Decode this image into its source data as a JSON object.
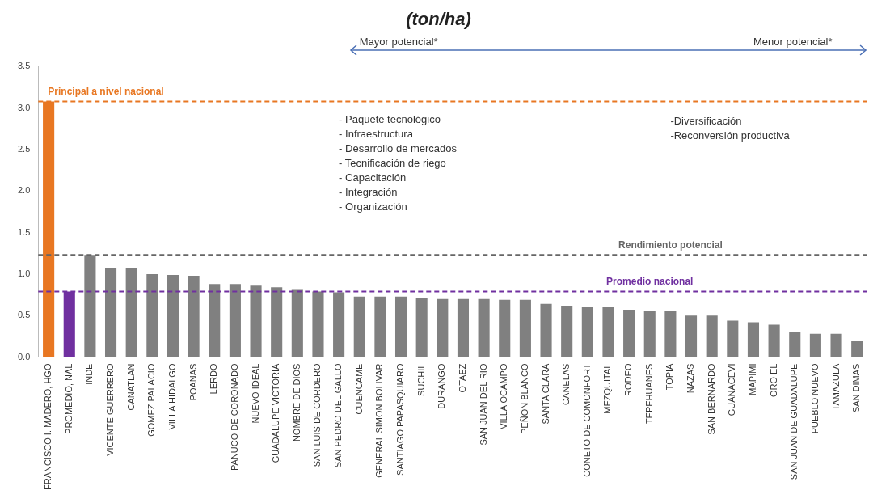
{
  "chart_data": {
    "type": "bar",
    "title": "(ton/ha)",
    "categories": [
      "FRANCISCO I. MADERO, HGO",
      "PROMEDIO, NAL",
      "INDE",
      "VICENTE GUERRERO",
      "CANATLAN",
      "GOMEZ PALACIO",
      "VILLA HIDALGO",
      "POANAS",
      "LERDO",
      "PANUCO DE CORONADO",
      "NUEVO IDEAL",
      "GUADALUPE VICTORIA",
      "NOMBRE DE DIOS",
      "SAN LUIS DE CORDERO",
      "SAN PEDRO DEL GALLO",
      "CUENCAME",
      "GENERAL SIMON BOLIVAR",
      "SANTIAGO PAPASQUIARO",
      "SUCHIL",
      "DURANGO",
      "OTAEZ",
      "SAN JUAN DEL RIO",
      "VILLA OCAMPO",
      "PEÑON BLANCO",
      "SANTA CLARA",
      "CANELAS",
      "CONETO DE COMONFORT",
      "MEZQUITAL",
      "RODEO",
      "TEPEHUANES",
      "TOPIA",
      "NAZAS",
      "SAN BERNARDO",
      "GUANACEVI",
      "MAPIMI",
      "ORO EL",
      "SAN JUAN DE GUADALUPE",
      "PUEBLO NUEVO",
      "TAMAZULA",
      "SAN DIMAS"
    ],
    "values": [
      3.08,
      0.79,
      1.23,
      1.07,
      1.07,
      1.0,
      0.99,
      0.98,
      0.88,
      0.88,
      0.86,
      0.84,
      0.82,
      0.79,
      0.78,
      0.73,
      0.73,
      0.73,
      0.71,
      0.7,
      0.7,
      0.7,
      0.69,
      0.69,
      0.64,
      0.61,
      0.6,
      0.6,
      0.57,
      0.56,
      0.55,
      0.5,
      0.5,
      0.44,
      0.42,
      0.39,
      0.3,
      0.28,
      0.28,
      0.19
    ],
    "colors": [
      "#e87722",
      "#7030a0",
      "#808080",
      "#808080",
      "#808080",
      "#808080",
      "#808080",
      "#808080",
      "#808080",
      "#808080",
      "#808080",
      "#808080",
      "#808080",
      "#808080",
      "#808080",
      "#808080",
      "#808080",
      "#808080",
      "#808080",
      "#808080",
      "#808080",
      "#808080",
      "#808080",
      "#808080",
      "#808080",
      "#808080",
      "#808080",
      "#808080",
      "#808080",
      "#808080",
      "#808080",
      "#808080",
      "#808080",
      "#808080",
      "#808080",
      "#808080",
      "#808080",
      "#808080",
      "#808080",
      "#808080"
    ],
    "ylim": [
      0,
      3.5
    ],
    "yticks": [
      {
        "value": 0,
        "label": "0.0"
      },
      0.5,
      {
        "value": 1,
        "label": "1.0"
      },
      1.5,
      {
        "value": 2,
        "label": "2.0"
      },
      2.5,
      {
        "value": 3,
        "label": "3.0"
      },
      3.5
    ],
    "grid": false,
    "legend": false,
    "ref_lines": [
      {
        "axis": "y",
        "value": 3.08,
        "label": "Principal a nivel nacional",
        "color": "#e87722",
        "line_style": "dashed"
      },
      {
        "axis": "y",
        "value": 1.23,
        "label": "Rendimiento potencial",
        "color": "#666666",
        "line_style": "dashed"
      },
      {
        "axis": "y",
        "value": 0.79,
        "label": "Promedio nacional",
        "color": "#7030a0",
        "line_style": "dashed"
      }
    ],
    "annotations": [
      "Mayor potencial*",
      "Menor potencial*",
      "- Paquete tecnológico\n- Infraestructura\n- Desarrollo de mercados\n- Tecnificación de riego\n- Capacitación\n- Integración\n- Organización",
      "-Diversificación\n-Reconversión productiva"
    ]
  }
}
